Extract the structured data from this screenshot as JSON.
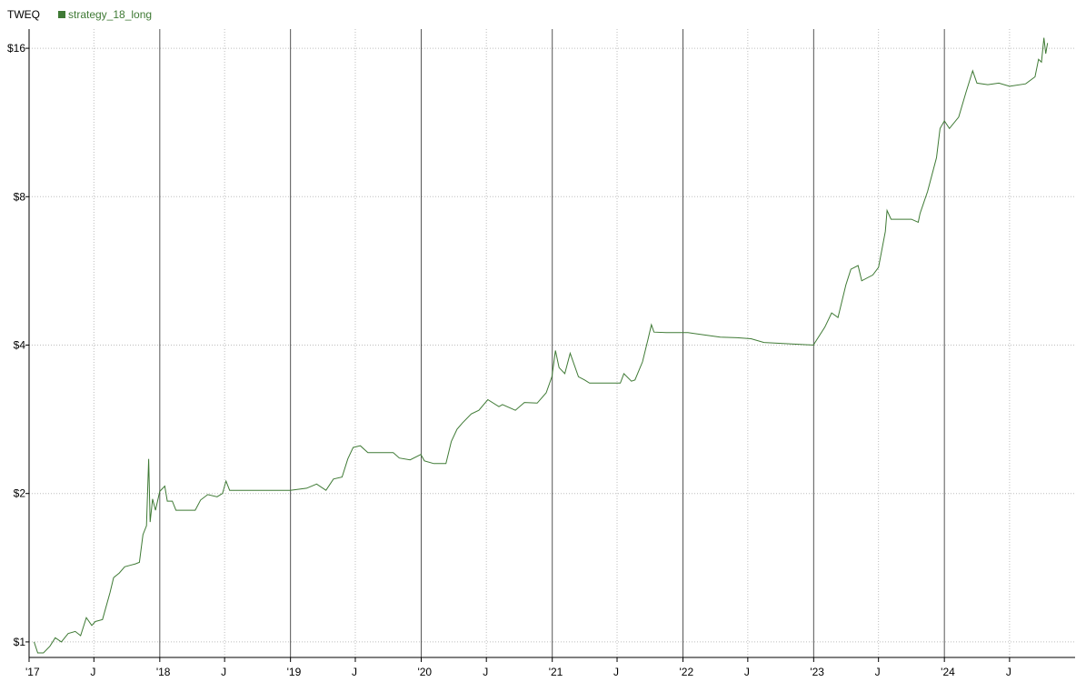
{
  "chart_data": {
    "type": "line",
    "title": "",
    "ticker": "TWEQ",
    "scale": "log",
    "xlabel": "",
    "ylabel": "",
    "xlim": [
      "2017-01-01",
      "2024-12-31"
    ],
    "ylim": [
      0.93,
      17.5
    ],
    "grid": true,
    "legend_position": "top-left",
    "y_ticks": [
      {
        "value": 1,
        "label": "$1"
      },
      {
        "value": 2,
        "label": "$2"
      },
      {
        "value": 4,
        "label": "$4"
      },
      {
        "value": 8,
        "label": "$8"
      },
      {
        "value": 16,
        "label": "$16"
      }
    ],
    "x_ticks": [
      {
        "date": "2017-01-01",
        "label": "'17",
        "major": true
      },
      {
        "date": "2017-07-01",
        "label": "J",
        "major": false
      },
      {
        "date": "2018-01-01",
        "label": "'18",
        "major": true
      },
      {
        "date": "2018-07-01",
        "label": "J",
        "major": false
      },
      {
        "date": "2019-01-01",
        "label": "'19",
        "major": true
      },
      {
        "date": "2019-07-01",
        "label": "J",
        "major": false
      },
      {
        "date": "2020-01-01",
        "label": "'20",
        "major": true
      },
      {
        "date": "2020-07-01",
        "label": "J",
        "major": false
      },
      {
        "date": "2021-01-01",
        "label": "'21",
        "major": true
      },
      {
        "date": "2021-07-01",
        "label": "J",
        "major": false
      },
      {
        "date": "2022-01-01",
        "label": "'22",
        "major": true
      },
      {
        "date": "2022-07-01",
        "label": "J",
        "major": false
      },
      {
        "date": "2023-01-01",
        "label": "'23",
        "major": true
      },
      {
        "date": "2023-07-01",
        "label": "J",
        "major": false
      },
      {
        "date": "2024-01-01",
        "label": "'24",
        "major": true
      },
      {
        "date": "2024-07-01",
        "label": "J",
        "major": false
      }
    ],
    "series": [
      {
        "name": "strategy_18_long",
        "color": "#3f7a35",
        "points": [
          [
            "2017-01-15",
            1.0
          ],
          [
            "2017-01-25",
            0.95
          ],
          [
            "2017-02-10",
            0.95
          ],
          [
            "2017-02-28",
            0.98
          ],
          [
            "2017-03-15",
            1.02
          ],
          [
            "2017-04-01",
            1.0
          ],
          [
            "2017-04-20",
            1.04
          ],
          [
            "2017-05-10",
            1.05
          ],
          [
            "2017-05-25",
            1.03
          ],
          [
            "2017-06-10",
            1.12
          ],
          [
            "2017-06-25",
            1.08
          ],
          [
            "2017-07-05",
            1.1
          ],
          [
            "2017-07-25",
            1.11
          ],
          [
            "2017-08-15",
            1.26
          ],
          [
            "2017-08-25",
            1.35
          ],
          [
            "2017-09-10",
            1.38
          ],
          [
            "2017-09-25",
            1.42
          ],
          [
            "2017-10-10",
            1.43
          ],
          [
            "2017-10-25",
            1.44
          ],
          [
            "2017-11-05",
            1.45
          ],
          [
            "2017-11-15",
            1.65
          ],
          [
            "2017-11-25",
            1.72
          ],
          [
            "2017-12-01",
            2.35
          ],
          [
            "2017-12-05",
            1.75
          ],
          [
            "2017-12-12",
            1.95
          ],
          [
            "2017-12-20",
            1.85
          ],
          [
            "2018-01-01",
            2.02
          ],
          [
            "2018-01-15",
            2.07
          ],
          [
            "2018-01-22",
            1.93
          ],
          [
            "2018-02-05",
            1.93
          ],
          [
            "2018-02-15",
            1.85
          ],
          [
            "2018-03-20",
            1.85
          ],
          [
            "2018-04-10",
            1.85
          ],
          [
            "2018-04-25",
            1.94
          ],
          [
            "2018-05-15",
            1.99
          ],
          [
            "2018-06-10",
            1.97
          ],
          [
            "2018-06-25",
            2.0
          ],
          [
            "2018-07-05",
            2.12
          ],
          [
            "2018-07-15",
            2.03
          ],
          [
            "2018-08-15",
            2.03
          ],
          [
            "2018-12-31",
            2.03
          ],
          [
            "2019-02-15",
            2.05
          ],
          [
            "2019-03-15",
            2.09
          ],
          [
            "2019-04-10",
            2.03
          ],
          [
            "2019-05-01",
            2.14
          ],
          [
            "2019-05-25",
            2.16
          ],
          [
            "2019-06-10",
            2.35
          ],
          [
            "2019-06-25",
            2.48
          ],
          [
            "2019-07-15",
            2.5
          ],
          [
            "2019-08-05",
            2.42
          ],
          [
            "2019-10-15",
            2.42
          ],
          [
            "2019-11-01",
            2.36
          ],
          [
            "2019-12-01",
            2.34
          ],
          [
            "2019-12-31",
            2.4
          ],
          [
            "2020-01-10",
            2.33
          ],
          [
            "2020-02-05",
            2.3
          ],
          [
            "2020-03-10",
            2.3
          ],
          [
            "2020-03-25",
            2.55
          ],
          [
            "2020-04-10",
            2.7
          ],
          [
            "2020-04-25",
            2.78
          ],
          [
            "2020-05-20",
            2.9
          ],
          [
            "2020-06-10",
            2.95
          ],
          [
            "2020-07-05",
            3.1
          ],
          [
            "2020-08-05",
            3.0
          ],
          [
            "2020-08-15",
            3.03
          ],
          [
            "2020-09-20",
            2.95
          ],
          [
            "2020-10-15",
            3.06
          ],
          [
            "2020-11-20",
            3.05
          ],
          [
            "2020-12-15",
            3.2
          ],
          [
            "2020-12-31",
            3.45
          ],
          [
            "2021-01-10",
            3.9
          ],
          [
            "2021-01-20",
            3.6
          ],
          [
            "2021-02-05",
            3.5
          ],
          [
            "2021-02-20",
            3.85
          ],
          [
            "2021-03-15",
            3.45
          ],
          [
            "2021-04-01",
            3.4
          ],
          [
            "2021-04-15",
            3.35
          ],
          [
            "2021-06-01",
            3.35
          ],
          [
            "2021-07-10",
            3.35
          ],
          [
            "2021-07-20",
            3.5
          ],
          [
            "2021-08-10",
            3.38
          ],
          [
            "2021-08-20",
            3.4
          ],
          [
            "2021-09-10",
            3.7
          ],
          [
            "2021-09-25",
            4.1
          ],
          [
            "2021-10-05",
            4.4
          ],
          [
            "2021-10-12",
            4.25
          ],
          [
            "2021-11-15",
            4.24
          ],
          [
            "2022-01-15",
            4.24
          ],
          [
            "2022-04-15",
            4.15
          ],
          [
            "2022-06-01",
            4.14
          ],
          [
            "2022-07-10",
            4.12
          ],
          [
            "2022-08-15",
            4.05
          ],
          [
            "2022-12-31",
            4.0
          ],
          [
            "2023-02-01",
            4.35
          ],
          [
            "2023-02-20",
            4.65
          ],
          [
            "2023-03-10",
            4.55
          ],
          [
            "2023-04-01",
            5.3
          ],
          [
            "2023-04-15",
            5.7
          ],
          [
            "2023-05-05",
            5.8
          ],
          [
            "2023-05-15",
            5.4
          ],
          [
            "2023-06-15",
            5.55
          ],
          [
            "2023-07-01",
            5.75
          ],
          [
            "2023-07-20",
            6.8
          ],
          [
            "2023-07-25",
            7.5
          ],
          [
            "2023-08-05",
            7.2
          ],
          [
            "2023-10-01",
            7.2
          ],
          [
            "2023-10-20",
            7.1
          ],
          [
            "2023-10-25",
            7.4
          ],
          [
            "2023-11-15",
            8.2
          ],
          [
            "2023-12-10",
            9.6
          ],
          [
            "2023-12-20",
            11.0
          ],
          [
            "2024-01-01",
            11.4
          ],
          [
            "2024-01-15",
            11.0
          ],
          [
            "2024-02-10",
            11.6
          ],
          [
            "2024-03-01",
            13.0
          ],
          [
            "2024-03-20",
            14.4
          ],
          [
            "2024-04-01",
            13.6
          ],
          [
            "2024-05-01",
            13.5
          ],
          [
            "2024-06-01",
            13.6
          ],
          [
            "2024-07-01",
            13.4
          ],
          [
            "2024-08-15",
            13.55
          ],
          [
            "2024-09-10",
            14.0
          ],
          [
            "2024-09-20",
            15.2
          ],
          [
            "2024-09-28",
            15.0
          ],
          [
            "2024-10-05",
            16.8
          ],
          [
            "2024-10-10",
            15.6
          ],
          [
            "2024-10-15",
            16.4
          ]
        ]
      }
    ]
  }
}
